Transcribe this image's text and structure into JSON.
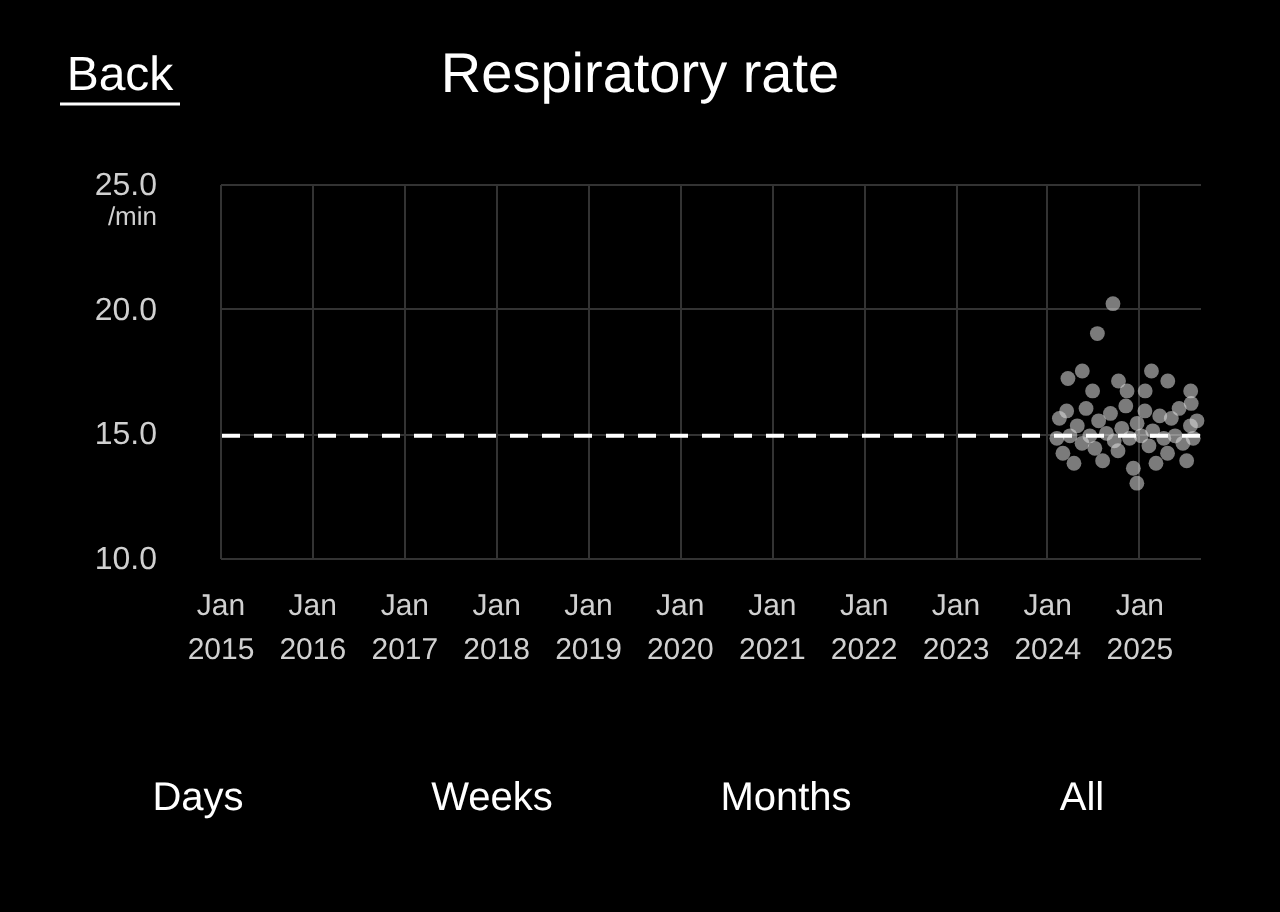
{
  "chart_data": {
    "type": "scatter",
    "title": "Respiratory rate",
    "ylabel": "/min",
    "annotations": [
      "Back",
      "Days",
      "Weeks",
      "Months",
      "All"
    ],
    "x": [
      "2024-02-10",
      "2024-02-20",
      "2024-03-05",
      "2024-03-20",
      "2024-04-02",
      "2024-04-18",
      "2024-05-01",
      "2024-05-20",
      "2024-06-05",
      "2024-06-20",
      "2024-07-10",
      "2024-07-25",
      "2024-08-10",
      "2024-08-25",
      "2024-09-10",
      "2024-09-25",
      "2024-10-10",
      "2024-10-25",
      "2024-11-10",
      "2024-11-25",
      "2024-12-10",
      "2024-12-25",
      "2025-01-10",
      "2025-01-25",
      "2025-02-10",
      "2025-02-25",
      "2025-03-10",
      "2025-03-25",
      "2025-04-10",
      "2025-04-25",
      "2025-05-10",
      "2025-05-25",
      "2025-06-10",
      "2025-06-25",
      "2025-07-10",
      "2025-07-25",
      "2025-08-05",
      "2025-08-20",
      "2024-03-25",
      "2024-05-21",
      "2024-07-01",
      "2024-07-20",
      "2024-09-20",
      "2024-10-12",
      "2024-11-15",
      "2024-12-24",
      "2025-01-26",
      "2025-02-20",
      "2025-04-26",
      "2025-07-26",
      "2025-07-28"
    ],
    "series": [
      {
        "color": "#e0e0e0",
        "values": [
          14.8,
          15.6,
          14.2,
          15.9,
          14.9,
          13.8,
          15.3,
          14.6,
          16.0,
          14.9,
          14.4,
          15.5,
          13.9,
          15.0,
          15.8,
          14.7,
          14.3,
          15.2,
          16.1,
          14.8,
          13.6,
          15.4,
          14.9,
          15.9,
          14.5,
          15.1,
          13.8,
          15.7,
          14.8,
          14.2,
          15.6,
          14.9,
          16.0,
          14.6,
          13.9,
          15.3,
          14.8,
          15.5,
          17.2,
          17.5,
          16.7,
          19.0,
          20.2,
          17.1,
          16.7,
          13.0,
          16.7,
          17.5,
          17.1,
          16.7,
          16.2
        ]
      }
    ],
    "marker": "circle",
    "xlim": [
      "2015-01-01",
      "2025-09-01"
    ],
    "xticks": [
      {
        "value": "2015-01-01",
        "label": "Jan\n2015"
      },
      {
        "value": "2016-01-01",
        "label": "Jan\n2016"
      },
      {
        "value": "2017-01-01",
        "label": "Jan\n2017"
      },
      {
        "value": "2018-01-01",
        "label": "Jan\n2018"
      },
      {
        "value": "2019-01-01",
        "label": "Jan\n2019"
      },
      {
        "value": "2020-01-01",
        "label": "Jan\n2020"
      },
      {
        "value": "2021-01-01",
        "label": "Jan\n2021"
      },
      {
        "value": "2022-01-01",
        "label": "Jan\n2022"
      },
      {
        "value": "2023-01-01",
        "label": "Jan\n2023"
      },
      {
        "value": "2024-01-01",
        "label": "Jan\n2024"
      },
      {
        "value": "2025-01-01",
        "label": "Jan\n2025"
      }
    ],
    "ylim": [
      10,
      25
    ],
    "yticks": [
      {
        "value": 10,
        "label": "10.0"
      },
      {
        "value": 15,
        "label": "15.0"
      },
      {
        "value": 20,
        "label": "20.0"
      },
      {
        "value": 25,
        "label": "25.0"
      }
    ],
    "ref_lines": [
      {
        "axis": "y",
        "value": 14.9,
        "color": "#ffffff",
        "line_style": "dashed"
      }
    ],
    "grid": true
  }
}
